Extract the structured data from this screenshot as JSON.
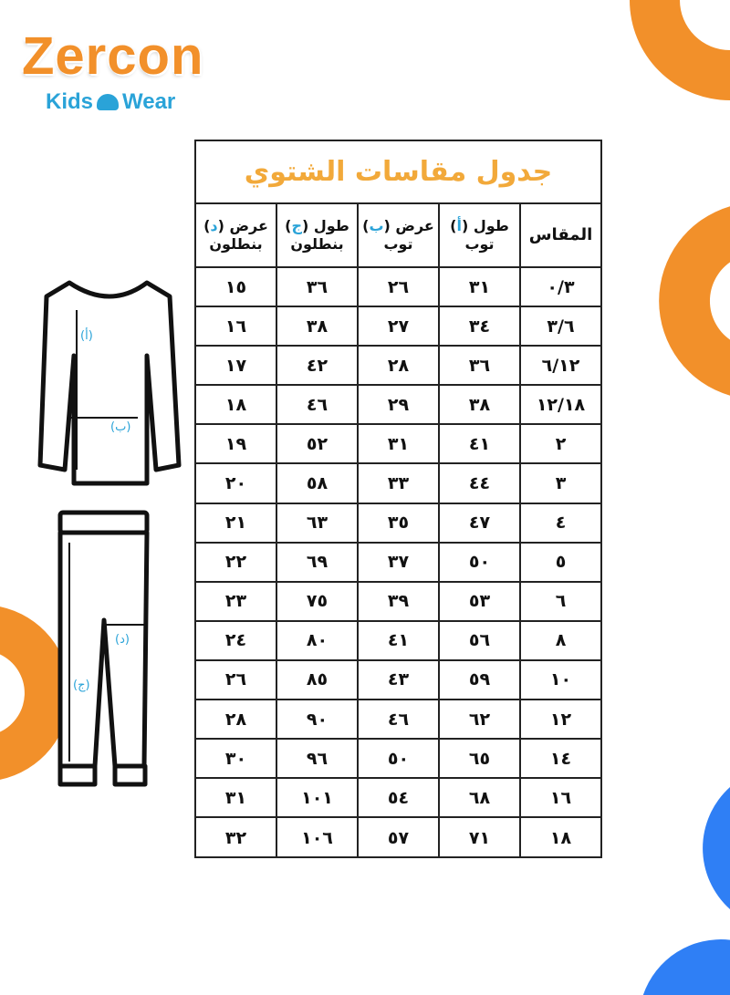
{
  "logo": {
    "brand": "Zercon",
    "sub_left": "Kids",
    "sub_right": "Wear"
  },
  "colors": {
    "orange": "#f2902a",
    "blue": "#2f7ff5",
    "title": "#f2a93a",
    "marker": "#2aa3d8"
  },
  "table": {
    "title": "جدول مقاسات الشتوي",
    "headers": [
      {
        "line1": "المقاس",
        "line2": "",
        "mark": ""
      },
      {
        "line1": "طول (",
        "mark": "أ",
        "close": ")",
        "line2": "توب"
      },
      {
        "line1": "عرض (",
        "mark": "ب",
        "close": ")",
        "line2": "توب"
      },
      {
        "line1": "طول (",
        "mark": "ج",
        "close": ")",
        "line2": "بنطلون"
      },
      {
        "line1": "عرض (",
        "mark": "د",
        "close": ")",
        "line2": "بنطلون"
      }
    ],
    "rows": [
      [
        "٠/٣",
        "٣١",
        "٢٦",
        "٣٦",
        "١٥"
      ],
      [
        "٣/٦",
        "٣٤",
        "٢٧",
        "٣٨",
        "١٦"
      ],
      [
        "٦/١٢",
        "٣٦",
        "٢٨",
        "٤٢",
        "١٧"
      ],
      [
        "١٢/١٨",
        "٣٨",
        "٢٩",
        "٤٦",
        "١٨"
      ],
      [
        "٢",
        "٤١",
        "٣١",
        "٥٢",
        "١٩"
      ],
      [
        "٣",
        "٤٤",
        "٣٣",
        "٥٨",
        "٢٠"
      ],
      [
        "٤",
        "٤٧",
        "٣٥",
        "٦٣",
        "٢١"
      ],
      [
        "٥",
        "٥٠",
        "٣٧",
        "٦٩",
        "٢٢"
      ],
      [
        "٦",
        "٥٣",
        "٣٩",
        "٧٥",
        "٢٣"
      ],
      [
        "٨",
        "٥٦",
        "٤١",
        "٨٠",
        "٢٤"
      ],
      [
        "١٠",
        "٥٩",
        "٤٣",
        "٨٥",
        "٢٦"
      ],
      [
        "١٢",
        "٦٢",
        "٤٦",
        "٩٠",
        "٢٨"
      ],
      [
        "١٤",
        "٦٥",
        "٥٠",
        "٩٦",
        "٣٠"
      ],
      [
        "١٦",
        "٦٨",
        "٥٤",
        "١٠١",
        "٣١"
      ],
      [
        "١٨",
        "٧١",
        "٥٧",
        "١٠٦",
        "٣٢"
      ]
    ]
  },
  "diagram": {
    "label_a": "(أ)",
    "label_b": "(ب)",
    "label_c": "(ج)",
    "label_d": "(د)"
  }
}
